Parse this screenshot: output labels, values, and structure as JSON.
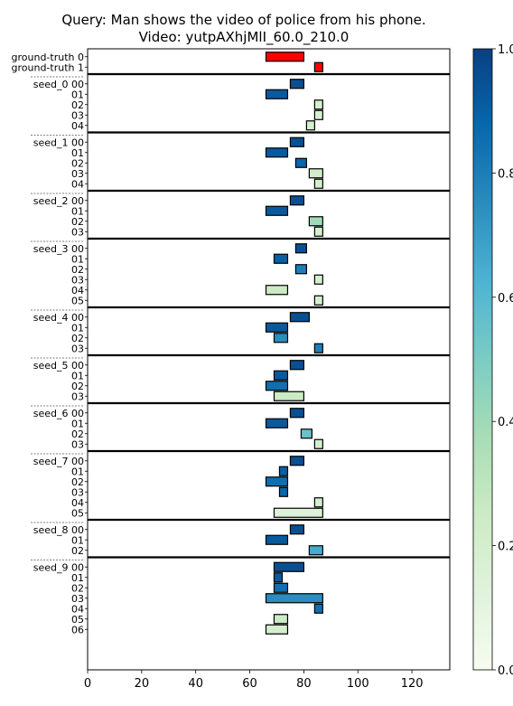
{
  "chart_data": {
    "type": "bar",
    "title": "Query: Man shows the video of police from his phone.",
    "subtitle": "Video: yutpAXhjMlI_60.0_210.0",
    "xlabel": "",
    "ylabel": "",
    "xlim": [
      0,
      134
    ],
    "x_ticks": [
      "0",
      "20",
      "40",
      "60",
      "80",
      "100",
      "120"
    ],
    "colorbar": {
      "colormap": "GnBu",
      "range": [
        0.0,
        1.0
      ],
      "ticks": [
        "0.0",
        "0.2",
        "0.4",
        "0.6",
        "0.8",
        "1.0"
      ]
    },
    "ground_truth": {
      "color": "#ff0000",
      "rows": [
        {
          "label": "ground-truth 0",
          "start": 66,
          "end": 80
        },
        {
          "label": "ground-truth 1",
          "start": 84,
          "end": 87
        }
      ]
    },
    "groups": [
      {
        "name": "seed_0",
        "rows": [
          {
            "label": "00",
            "start": 75,
            "end": 80,
            "score": 0.95
          },
          {
            "label": "01",
            "start": 66,
            "end": 74,
            "score": 0.92
          },
          {
            "label": "02",
            "start": 84,
            "end": 87,
            "score": 0.2
          },
          {
            "label": "03",
            "start": 84,
            "end": 87,
            "score": 0.18
          },
          {
            "label": "04",
            "start": 81,
            "end": 84,
            "score": 0.2
          }
        ]
      },
      {
        "name": "seed_1",
        "rows": [
          {
            "label": "00",
            "start": 75,
            "end": 80,
            "score": 0.95
          },
          {
            "label": "01",
            "start": 66,
            "end": 74,
            "score": 0.92
          },
          {
            "label": "02",
            "start": 77,
            "end": 81,
            "score": 0.88
          },
          {
            "label": "03",
            "start": 82,
            "end": 87,
            "score": 0.22
          },
          {
            "label": "04",
            "start": 84,
            "end": 87,
            "score": 0.2
          }
        ]
      },
      {
        "name": "seed_2",
        "rows": [
          {
            "label": "00",
            "start": 75,
            "end": 80,
            "score": 0.95
          },
          {
            "label": "01",
            "start": 66,
            "end": 74,
            "score": 0.92
          },
          {
            "label": "02",
            "start": 82,
            "end": 87,
            "score": 0.4
          },
          {
            "label": "03",
            "start": 84,
            "end": 87,
            "score": 0.2
          }
        ]
      },
      {
        "name": "seed_3",
        "rows": [
          {
            "label": "00",
            "start": 77,
            "end": 81,
            "score": 0.95
          },
          {
            "label": "01",
            "start": 69,
            "end": 74,
            "score": 0.9
          },
          {
            "label": "02",
            "start": 77,
            "end": 81,
            "score": 0.8
          },
          {
            "label": "03",
            "start": 84,
            "end": 87,
            "score": 0.2
          },
          {
            "label": "04",
            "start": 66,
            "end": 74,
            "score": 0.25
          },
          {
            "label": "05",
            "start": 84,
            "end": 87,
            "score": 0.18
          }
        ]
      },
      {
        "name": "seed_4",
        "rows": [
          {
            "label": "00",
            "start": 75,
            "end": 82,
            "score": 0.95
          },
          {
            "label": "01",
            "start": 66,
            "end": 74,
            "score": 0.92
          },
          {
            "label": "02",
            "start": 69,
            "end": 74,
            "score": 0.75
          },
          {
            "label": "03",
            "start": 84,
            "end": 87,
            "score": 0.8
          }
        ]
      },
      {
        "name": "seed_5",
        "rows": [
          {
            "label": "00",
            "start": 75,
            "end": 80,
            "score": 0.95
          },
          {
            "label": "01",
            "start": 69,
            "end": 74,
            "score": 0.92
          },
          {
            "label": "02",
            "start": 66,
            "end": 74,
            "score": 0.85
          },
          {
            "label": "03",
            "start": 69,
            "end": 80,
            "score": 0.25
          }
        ]
      },
      {
        "name": "seed_6",
        "rows": [
          {
            "label": "00",
            "start": 75,
            "end": 80,
            "score": 0.95
          },
          {
            "label": "01",
            "start": 66,
            "end": 74,
            "score": 0.92
          },
          {
            "label": "02",
            "start": 79,
            "end": 83,
            "score": 0.55
          },
          {
            "label": "03",
            "start": 84,
            "end": 87,
            "score": 0.2
          }
        ]
      },
      {
        "name": "seed_7",
        "rows": [
          {
            "label": "00",
            "start": 75,
            "end": 80,
            "score": 0.95
          },
          {
            "label": "01",
            "start": 71,
            "end": 74,
            "score": 0.9
          },
          {
            "label": "02",
            "start": 66,
            "end": 74,
            "score": 0.85
          },
          {
            "label": "03",
            "start": 71,
            "end": 74,
            "score": 0.88
          },
          {
            "label": "04",
            "start": 84,
            "end": 87,
            "score": 0.2
          },
          {
            "label": "05",
            "start": 69,
            "end": 87,
            "score": 0.15
          }
        ]
      },
      {
        "name": "seed_8",
        "rows": [
          {
            "label": "00",
            "start": 75,
            "end": 80,
            "score": 0.95
          },
          {
            "label": "01",
            "start": 66,
            "end": 74,
            "score": 0.92
          },
          {
            "label": "02",
            "start": 82,
            "end": 87,
            "score": 0.65
          }
        ]
      },
      {
        "name": "seed_9",
        "rows": [
          {
            "label": "00",
            "start": 69,
            "end": 80,
            "score": 0.95
          },
          {
            "label": "01",
            "start": 69,
            "end": 72,
            "score": 0.92
          },
          {
            "label": "02",
            "start": 69,
            "end": 74,
            "score": 0.85
          },
          {
            "label": "03",
            "start": 66,
            "end": 87,
            "score": 0.75
          },
          {
            "label": "04",
            "start": 84,
            "end": 87,
            "score": 0.85
          },
          {
            "label": "05",
            "start": 69,
            "end": 74,
            "score": 0.25
          },
          {
            "label": "06",
            "start": 66,
            "end": 74,
            "score": 0.2
          }
        ]
      }
    ]
  }
}
